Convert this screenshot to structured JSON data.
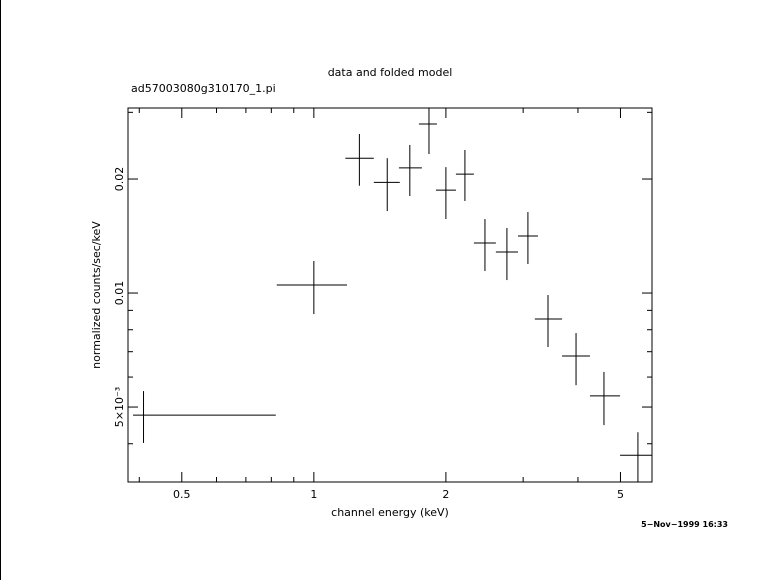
{
  "chart_data": {
    "type": "errorbar",
    "title": "data and folded model",
    "subtitle": "ad57003080g310170_1.pi",
    "x_label": "channel energy (keV)",
    "y_label": "normalized counts/sec/keV",
    "timestamp": "5−Nov−1999 16:33",
    "x_scale": "log",
    "y_scale": "log",
    "xlim": [
      0.377,
      5.9
    ],
    "ylim": [
      0.00317,
      0.0308
    ],
    "xticks": [
      0.5,
      1,
      2,
      5
    ],
    "xminor": [
      0.4,
      0.6,
      0.7,
      0.8,
      0.9,
      3,
      4
    ],
    "yticks": [
      {
        "value": 0.005,
        "label": "5×10⁻³"
      },
      0.01,
      0.02
    ],
    "yminor": [
      0.004,
      0.006,
      0.007,
      0.008,
      0.009,
      0.03
    ],
    "color": "#000000",
    "x": [
      0.409,
      1.0,
      1.27,
      1.47,
      1.655,
      1.83,
      2.0,
      2.21,
      2.455,
      2.755,
      3.076,
      3.418,
      3.96,
      4.585,
      5.48
    ],
    "x_lo": [
      0.387,
      0.823,
      1.18,
      1.37,
      1.563,
      1.736,
      1.898,
      2.108,
      2.317,
      2.6,
      2.92,
      3.19,
      3.68,
      4.26,
      4.99
    ],
    "x_hi": [
      0.819,
      1.19,
      1.37,
      1.57,
      1.763,
      1.908,
      2.108,
      2.317,
      2.6,
      2.92,
      3.243,
      3.68,
      4.26,
      4.99,
      5.9
    ],
    "values": [
      0.00476,
      0.0105,
      0.0227,
      0.0196,
      0.0214,
      0.02795,
      0.0187,
      0.0206,
      0.01355,
      0.01283,
      0.01414,
      0.00854,
      0.00682,
      0.00535,
      0.00373
    ],
    "y_lo": [
      0.00402,
      0.0088,
      0.0192,
      0.01646,
      0.01804,
      0.02328,
      0.01568,
      0.0175,
      0.01143,
      0.01082,
      0.01193,
      0.0072,
      0.00571,
      0.00448,
      0.00317
    ],
    "y_hi": [
      0.00551,
      0.01215,
      0.0263,
      0.0227,
      0.0246,
      0.0323,
      0.0215,
      0.02386,
      0.01568,
      0.01485,
      0.01636,
      0.00988,
      0.00784,
      0.00619,
      0.00429
    ]
  }
}
